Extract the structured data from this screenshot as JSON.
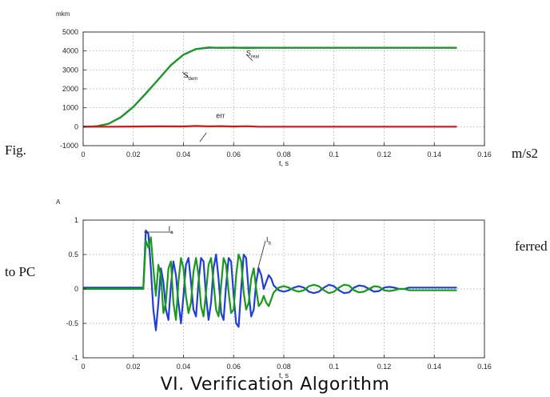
{
  "page": {
    "fragments": [
      {
        "id": "frag-fig",
        "text": "Fig."
      },
      {
        "id": "frag-ms2",
        "text": "m/s2"
      },
      {
        "id": "frag-ferred",
        "text": "ferred"
      },
      {
        "id": "frag-topc",
        "text": "to PC"
      }
    ],
    "heading": "VI.     Verification Algorithm"
  },
  "chart_data": [
    {
      "type": "line",
      "title": "",
      "unit_label": "mkm",
      "xlabel": "t, s",
      "ylabel": "",
      "xlim": [
        0,
        0.16
      ],
      "ylim": [
        -1000,
        5000
      ],
      "xticks": [
        0,
        0.02,
        0.04,
        0.06,
        0.08,
        0.1,
        0.12,
        0.14,
        0.16
      ],
      "xtick_labels": [
        "0",
        "0.02",
        "0.04",
        "0.06",
        "0.08",
        "0.1",
        "0.12",
        "0.14",
        "0.16"
      ],
      "yticks": [
        -1000,
        0,
        1000,
        2000,
        3000,
        4000,
        5000
      ],
      "ytick_labels": [
        "-1000",
        "0",
        "1000",
        "2000",
        "3000",
        "4000",
        "5000"
      ],
      "grid": true,
      "series": [
        {
          "name": "Sdem",
          "color": "#1f3fd8",
          "x": [
            0,
            0.005,
            0.01,
            0.015,
            0.02,
            0.025,
            0.03,
            0.035,
            0.04,
            0.045,
            0.05,
            0.055,
            0.06,
            0.08,
            0.1,
            0.12,
            0.149
          ],
          "y": [
            0,
            20,
            150,
            500,
            1050,
            1750,
            2500,
            3250,
            3800,
            4100,
            4170,
            4170,
            4170,
            4170,
            4170,
            4170,
            4170
          ]
        },
        {
          "name": "Sreal",
          "color": "#1a9a1a",
          "x": [
            0,
            0.005,
            0.01,
            0.015,
            0.02,
            0.025,
            0.03,
            0.035,
            0.04,
            0.045,
            0.05,
            0.055,
            0.06,
            0.065,
            0.07,
            0.08,
            0.1,
            0.12,
            0.149
          ],
          "y": [
            0,
            20,
            150,
            500,
            1050,
            1750,
            2500,
            3250,
            3800,
            4100,
            4190,
            4160,
            4180,
            4150,
            4170,
            4170,
            4170,
            4170,
            4170
          ]
        },
        {
          "name": "err",
          "color": "#e01010",
          "x": [
            0,
            0.01,
            0.02,
            0.03,
            0.04,
            0.045,
            0.05,
            0.055,
            0.06,
            0.065,
            0.07,
            0.08,
            0.1,
            0.12,
            0.149
          ],
          "y": [
            0,
            0,
            10,
            20,
            15,
            40,
            20,
            30,
            10,
            25,
            0,
            0,
            0,
            0,
            0
          ]
        }
      ],
      "annotations": [
        {
          "label": "Sdem",
          "main": "S",
          "sub": "dem",
          "x": 0.04,
          "y": 2600
        },
        {
          "label": "Sreal",
          "main": "S",
          "sub": "real",
          "x": 0.065,
          "y": 3750
        },
        {
          "label": "err",
          "main": "err",
          "sub": "",
          "x": 0.053,
          "y": 450
        }
      ]
    },
    {
      "type": "line",
      "title": "",
      "unit_label": "A",
      "xlabel": "t, s",
      "ylabel": "",
      "xlim": [
        0,
        0.16
      ],
      "ylim": [
        -1,
        1
      ],
      "xticks": [
        0,
        0.02,
        0.04,
        0.06,
        0.08,
        0.1,
        0.12,
        0.14,
        0.16
      ],
      "xtick_labels": [
        "0",
        "0.02",
        "0.04",
        "0.06",
        "0.08",
        "0.1",
        "0.12",
        "0.14",
        "0.16"
      ],
      "yticks": [
        -1,
        -0.5,
        0,
        0.5,
        1
      ],
      "ytick_labels": [
        "-1",
        "-0.5",
        "0",
        "0.5",
        "1"
      ],
      "grid": true,
      "series": [
        {
          "name": "Ia",
          "color": "#1f3fd8",
          "x": [
            0,
            0.024,
            0.025,
            0.026,
            0.027,
            0.028,
            0.029,
            0.03,
            0.031,
            0.032,
            0.033,
            0.034,
            0.035,
            0.036,
            0.037,
            0.038,
            0.039,
            0.04,
            0.041,
            0.042,
            0.043,
            0.044,
            0.045,
            0.046,
            0.047,
            0.048,
            0.049,
            0.05,
            0.051,
            0.052,
            0.053,
            0.054,
            0.055,
            0.056,
            0.057,
            0.058,
            0.059,
            0.06,
            0.061,
            0.062,
            0.063,
            0.064,
            0.065,
            0.066,
            0.067,
            0.068,
            0.069,
            0.07,
            0.071,
            0.072,
            0.073,
            0.074,
            0.075,
            0.076,
            0.078,
            0.08,
            0.082,
            0.084,
            0.086,
            0.088,
            0.09,
            0.092,
            0.094,
            0.096,
            0.098,
            0.1,
            0.102,
            0.104,
            0.106,
            0.108,
            0.11,
            0.112,
            0.114,
            0.116,
            0.118,
            0.12,
            0.122,
            0.124,
            0.126,
            0.128,
            0.13,
            0.14,
            0.149
          ],
          "y": [
            0.02,
            0.02,
            0.85,
            0.8,
            0.3,
            -0.3,
            -0.6,
            -0.2,
            0.3,
            0.1,
            -0.3,
            -0.45,
            0.05,
            0.4,
            0.2,
            -0.2,
            -0.5,
            -0.1,
            0.35,
            0.45,
            0.1,
            -0.3,
            -0.4,
            0.1,
            0.45,
            0.4,
            -0.1,
            -0.45,
            -0.2,
            0.3,
            0.5,
            0.15,
            -0.35,
            -0.45,
            0.05,
            0.45,
            0.4,
            -0.1,
            -0.5,
            -0.55,
            0.0,
            0.5,
            0.45,
            -0.05,
            -0.4,
            -0.3,
            0.1,
            0.3,
            0.2,
            0.0,
            0.1,
            0.2,
            0.15,
            0.05,
            -0.02,
            -0.04,
            -0.02,
            0.02,
            0.04,
            0.02,
            -0.04,
            -0.06,
            -0.04,
            0.02,
            0.06,
            0.04,
            -0.02,
            -0.06,
            -0.05,
            0.02,
            0.05,
            0.04,
            0.0,
            -0.04,
            -0.03,
            0.02,
            0.03,
            0.02,
            0.0,
            0.0,
            0.02,
            0.02,
            0.02
          ]
        },
        {
          "name": "Ib",
          "color": "#1a9a1a",
          "x": [
            0,
            0.024,
            0.025,
            0.026,
            0.027,
            0.028,
            0.029,
            0.03,
            0.031,
            0.032,
            0.033,
            0.034,
            0.035,
            0.036,
            0.037,
            0.038,
            0.039,
            0.04,
            0.041,
            0.042,
            0.043,
            0.044,
            0.045,
            0.046,
            0.047,
            0.048,
            0.049,
            0.05,
            0.051,
            0.052,
            0.053,
            0.054,
            0.055,
            0.056,
            0.057,
            0.058,
            0.059,
            0.06,
            0.061,
            0.062,
            0.063,
            0.064,
            0.065,
            0.066,
            0.067,
            0.068,
            0.069,
            0.07,
            0.071,
            0.072,
            0.073,
            0.074,
            0.075,
            0.076,
            0.078,
            0.08,
            0.082,
            0.084,
            0.086,
            0.088,
            0.09,
            0.092,
            0.094,
            0.096,
            0.098,
            0.1,
            0.102,
            0.104,
            0.106,
            0.108,
            0.11,
            0.112,
            0.114,
            0.116,
            0.118,
            0.12,
            0.122,
            0.124,
            0.126,
            0.128,
            0.13,
            0.14,
            0.149
          ],
          "y": [
            0,
            0,
            0.7,
            0.6,
            0.75,
            0.3,
            -0.1,
            0.35,
            0.2,
            -0.35,
            -0.2,
            0.3,
            0.4,
            -0.2,
            -0.45,
            0.1,
            0.45,
            0.3,
            -0.1,
            -0.35,
            -0.2,
            0.25,
            0.45,
            0.2,
            -0.25,
            -0.4,
            -0.05,
            0.35,
            0.45,
            0.1,
            -0.3,
            -0.4,
            0.05,
            0.45,
            0.35,
            -0.05,
            -0.35,
            -0.3,
            0.2,
            0.5,
            0.4,
            -0.05,
            -0.3,
            -0.2,
            0.15,
            0.3,
            0.0,
            -0.25,
            -0.2,
            -0.1,
            -0.2,
            -0.25,
            -0.15,
            -0.05,
            0.02,
            0.04,
            0.02,
            -0.02,
            -0.04,
            -0.02,
            0.04,
            0.06,
            0.04,
            -0.02,
            -0.06,
            -0.04,
            0.02,
            0.06,
            0.05,
            -0.02,
            -0.05,
            -0.04,
            0.0,
            0.04,
            0.03,
            -0.02,
            -0.03,
            -0.02,
            0.0,
            0.0,
            -0.02,
            -0.02,
            -0.02
          ]
        }
      ],
      "annotations": [
        {
          "label": "Ia",
          "main": "I",
          "sub": "a",
          "x": 0.034,
          "y": 0.84
        },
        {
          "label": "Ib",
          "main": "I",
          "sub": "b",
          "x": 0.073,
          "y": 0.68
        }
      ]
    }
  ]
}
